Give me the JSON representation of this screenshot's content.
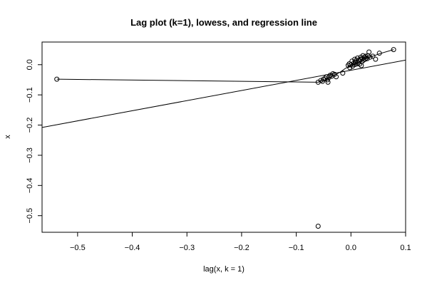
{
  "chart_data": {
    "type": "scatter",
    "title": "Lag plot (k=1), lowess, and regression line",
    "xlabel": "lag(x, k = 1)",
    "ylabel": "x",
    "xlim": [
      -0.565,
      0.1
    ],
    "ylim": [
      -0.555,
      0.075
    ],
    "x_ticks": [
      -0.5,
      -0.4,
      -0.3,
      -0.2,
      -0.1,
      0.0,
      0.1
    ],
    "x_tick_labels": [
      "−0.5",
      "−0.4",
      "−0.3",
      "−0.2",
      "−0.1",
      "0.0",
      "0.1"
    ],
    "y_ticks": [
      -0.5,
      -0.4,
      -0.3,
      -0.2,
      -0.1,
      0.0
    ],
    "y_tick_labels": [
      "−0.5",
      "−0.4",
      "−0.3",
      "−0.2",
      "−0.1",
      "0.0"
    ],
    "points": [
      {
        "x": -0.538,
        "y": -0.048
      },
      {
        "x": -0.06,
        "y": -0.535
      },
      {
        "x": -0.06,
        "y": -0.058
      },
      {
        "x": -0.055,
        "y": -0.052
      },
      {
        "x": -0.052,
        "y": -0.055
      },
      {
        "x": -0.05,
        "y": -0.048
      },
      {
        "x": -0.047,
        "y": -0.045
      },
      {
        "x": -0.045,
        "y": -0.04
      },
      {
        "x": -0.043,
        "y": -0.05
      },
      {
        "x": -0.042,
        "y": -0.058
      },
      {
        "x": -0.04,
        "y": -0.042
      },
      {
        "x": -0.038,
        "y": -0.035
      },
      {
        "x": -0.035,
        "y": -0.038
      },
      {
        "x": -0.033,
        "y": -0.03
      },
      {
        "x": -0.03,
        "y": -0.032
      },
      {
        "x": -0.027,
        "y": -0.04
      },
      {
        "x": -0.015,
        "y": -0.028
      },
      {
        "x": -0.005,
        "y": -0.002
      },
      {
        "x": -0.003,
        "y": 0.003
      },
      {
        "x": -0.002,
        "y": -0.01
      },
      {
        "x": 0.0,
        "y": 0.0
      },
      {
        "x": 0.002,
        "y": 0.012
      },
      {
        "x": 0.003,
        "y": -0.005
      },
      {
        "x": 0.005,
        "y": 0.005
      },
      {
        "x": 0.006,
        "y": 0.0
      },
      {
        "x": 0.007,
        "y": 0.018
      },
      {
        "x": 0.008,
        "y": 0.008
      },
      {
        "x": 0.01,
        "y": 0.002
      },
      {
        "x": 0.01,
        "y": 0.015
      },
      {
        "x": 0.012,
        "y": 0.022
      },
      {
        "x": 0.013,
        "y": 0.005
      },
      {
        "x": 0.015,
        "y": 0.012
      },
      {
        "x": 0.016,
        "y": 0.002
      },
      {
        "x": 0.017,
        "y": 0.018
      },
      {
        "x": 0.018,
        "y": 0.025
      },
      {
        "x": 0.019,
        "y": -0.003
      },
      {
        "x": 0.02,
        "y": 0.01
      },
      {
        "x": 0.021,
        "y": 0.02
      },
      {
        "x": 0.022,
        "y": 0.03
      },
      {
        "x": 0.023,
        "y": 0.015
      },
      {
        "x": 0.025,
        "y": 0.025
      },
      {
        "x": 0.026,
        "y": 0.018
      },
      {
        "x": 0.027,
        "y": 0.028
      },
      {
        "x": 0.028,
        "y": 0.022
      },
      {
        "x": 0.03,
        "y": 0.02
      },
      {
        "x": 0.031,
        "y": 0.03
      },
      {
        "x": 0.033,
        "y": 0.042
      },
      {
        "x": 0.035,
        "y": 0.025
      },
      {
        "x": 0.04,
        "y": 0.028
      },
      {
        "x": 0.045,
        "y": 0.018
      },
      {
        "x": 0.052,
        "y": 0.038
      },
      {
        "x": 0.078,
        "y": 0.05
      }
    ],
    "lowess": [
      [
        -0.538,
        -0.048
      ],
      [
        -0.06,
        -0.058
      ],
      [
        -0.05,
        -0.052
      ],
      [
        -0.04,
        -0.045
      ],
      [
        -0.03,
        -0.035
      ],
      [
        -0.02,
        -0.025
      ],
      [
        -0.01,
        -0.012
      ],
      [
        0.0,
        -0.003
      ],
      [
        0.01,
        0.005
      ],
      [
        0.02,
        0.012
      ],
      [
        0.03,
        0.022
      ],
      [
        0.04,
        0.028
      ],
      [
        0.05,
        0.035
      ],
      [
        0.078,
        0.05
      ]
    ],
    "regression": {
      "intercept": -0.0185,
      "slope": 0.335
    },
    "grid": false
  }
}
